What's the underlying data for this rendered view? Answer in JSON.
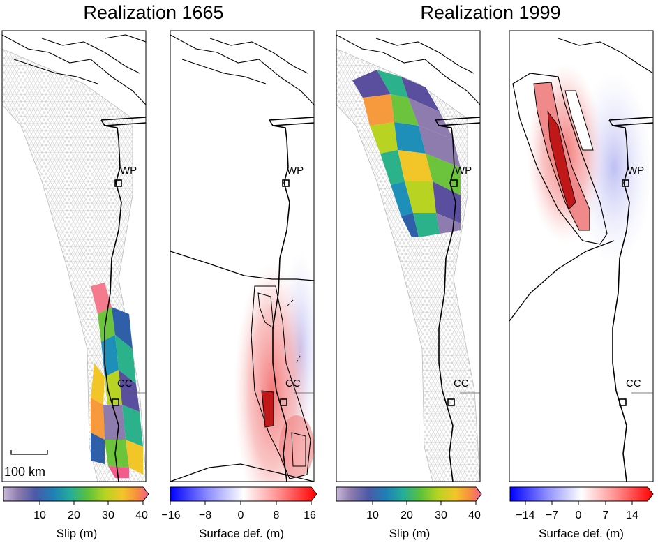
{
  "titles": {
    "left": "Realization 1665",
    "right": "Realization 1999"
  },
  "sites": {
    "wp": "WP",
    "cc": "CC"
  },
  "scalebar": {
    "label": "100 km"
  },
  "colorbars": {
    "slip": {
      "label": "Slip (m)",
      "ticks": [
        "10",
        "20",
        "30",
        "40"
      ]
    },
    "def1665": {
      "label": "Surface def. (m)",
      "ticks": [
        "−16",
        "−8",
        "0",
        "8",
        "16"
      ]
    },
    "def1999": {
      "label": "Surface def. (m)",
      "ticks": [
        "−14",
        "−7",
        "0",
        "7",
        "14"
      ]
    }
  },
  "colors": {
    "slip_scale": [
      "#8e7cae",
      "#5a4f9e",
      "#2f5fa8",
      "#1e8fb8",
      "#2bb28a",
      "#6cc43c",
      "#b8d322",
      "#f2c629",
      "#f79a3d",
      "#f45a8c",
      "#f2a0d8"
    ],
    "def_scale": [
      "#0000ff",
      "#8080ff",
      "#ffffff",
      "#ff9090",
      "#ff0000"
    ]
  }
}
